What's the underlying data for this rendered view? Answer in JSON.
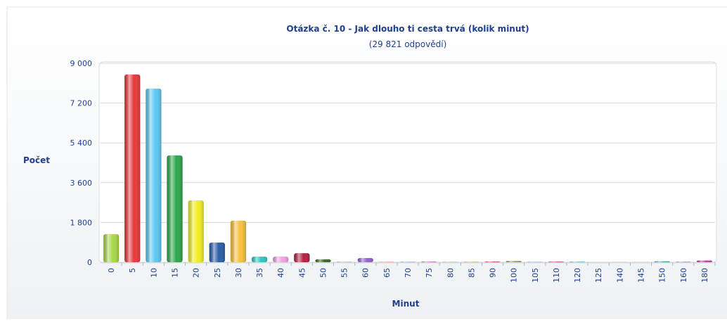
{
  "chart_data": {
    "type": "bar",
    "title": "Otázka č. 10 - Jak dlouho ti cesta trvá (kolik minut)",
    "subtitle": "(29 821 odpovědí)",
    "y_label": "Počet",
    "x_label": "Minut",
    "categories": [
      "0",
      "5",
      "10",
      "15",
      "20",
      "25",
      "30",
      "35",
      "40",
      "45",
      "50",
      "55",
      "60",
      "65",
      "70",
      "75",
      "80",
      "85",
      "90",
      "100",
      "105",
      "110",
      "120",
      "125",
      "140",
      "145",
      "150",
      "160",
      "180"
    ],
    "values": [
      1270,
      8490,
      7850,
      4830,
      2800,
      890,
      1880,
      255,
      255,
      410,
      130,
      30,
      190,
      10,
      20,
      30,
      10,
      20,
      30,
      60,
      10,
      30,
      30,
      5,
      5,
      5,
      40,
      20,
      80
    ],
    "colors": [
      "#a8d84a",
      "#e63a3c",
      "#5ec8f2",
      "#2ea64a",
      "#f2ef22",
      "#2a5ea8",
      "#f8c040",
      "#30c8c0",
      "#f2a2e2",
      "#b02244",
      "#3a6a24",
      "#cccccc",
      "#9462d2",
      "#e06020",
      "#80a0d0",
      "#c080c0",
      "#60b060",
      "#d0a060",
      "#e04080",
      "#a0a060",
      "#4080c0",
      "#c06080",
      "#80c0c0",
      "#c0c040",
      "#6060c0",
      "#e08040",
      "#40a0a0",
      "#a060a0",
      "#c040a0"
    ],
    "ylim": [
      0,
      9000
    ],
    "yticks": [
      {
        "value": 0,
        "label": "0"
      },
      {
        "value": 1800,
        "label": "1 800"
      },
      {
        "value": 3600,
        "label": "3 600"
      },
      {
        "value": 5400,
        "label": "5 400"
      },
      {
        "value": 7200,
        "label": "7 200"
      },
      {
        "value": 9000,
        "label": "9 000"
      }
    ],
    "grid": true
  }
}
